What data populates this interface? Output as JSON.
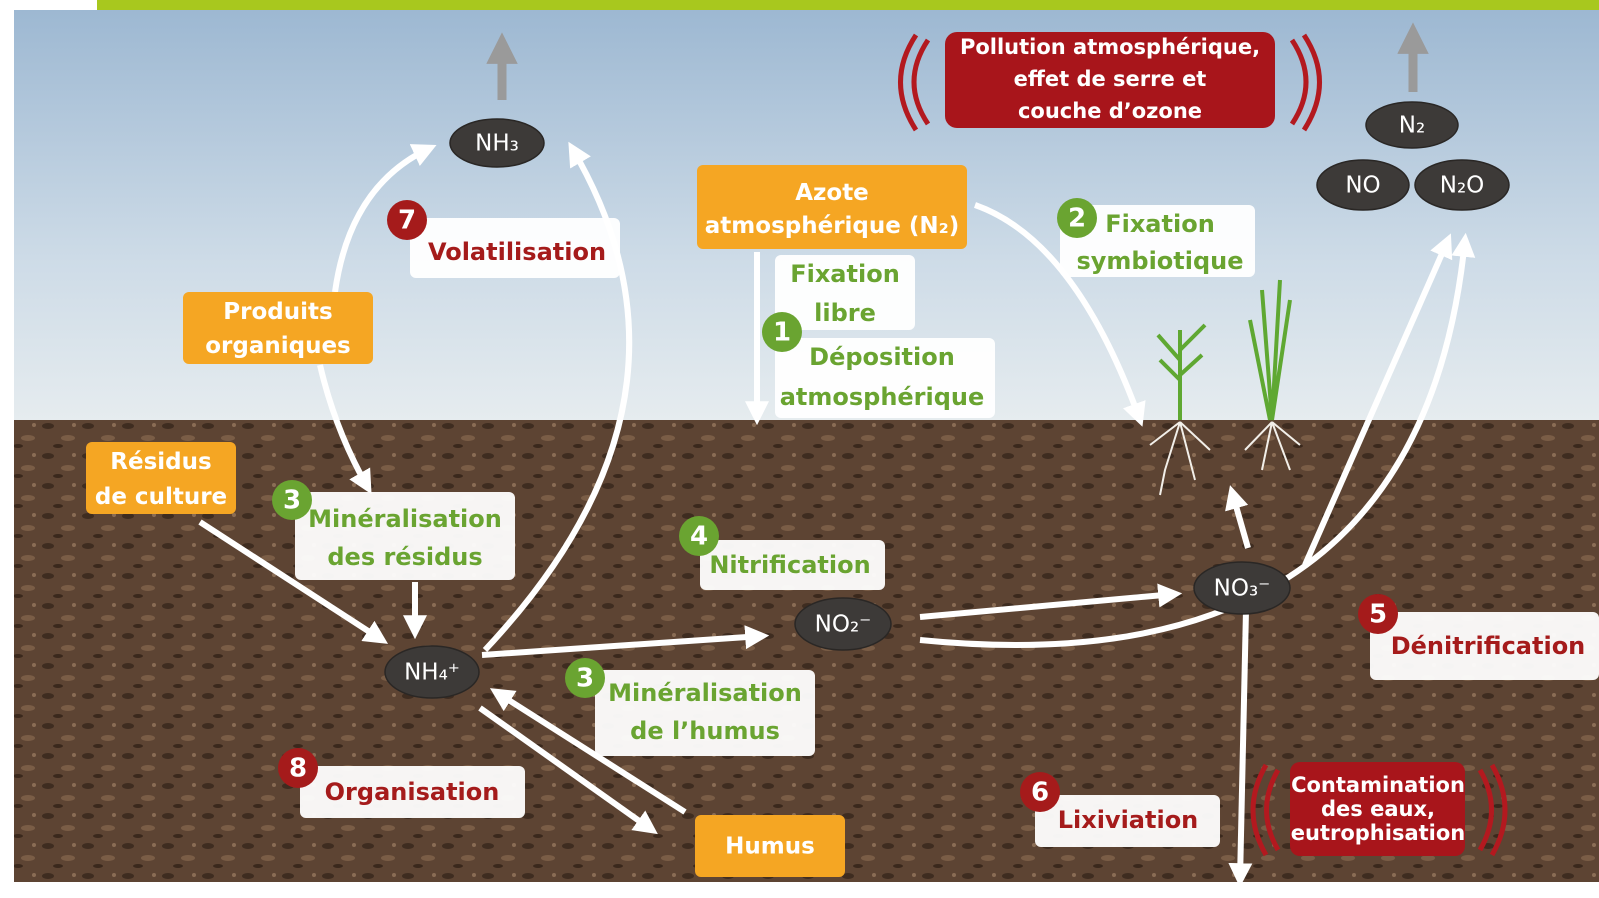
{
  "compounds": [
    "NH₃",
    "N₂",
    "NO",
    "N₂O",
    "NH₄⁺",
    "NO₂⁻",
    "NO₃⁻"
  ],
  "sources": [
    {
      "lines": [
        "Azote",
        "atmosphérique (N₂)"
      ]
    },
    {
      "lines": [
        "Produits",
        "organiques"
      ]
    },
    {
      "lines": [
        "Résidus",
        "de culture"
      ]
    },
    {
      "lines": [
        "Humus"
      ]
    }
  ],
  "processes": [
    {
      "number": 7,
      "lines": [
        "Volatilisation"
      ]
    },
    {
      "number": 1,
      "lines": [
        "Fixation",
        "libre",
        "Déposition",
        "atmosphérique"
      ]
    },
    {
      "number": 2,
      "lines": [
        "Fixation",
        "symbiotique"
      ]
    },
    {
      "number": 3,
      "lines": [
        "Minéralisation",
        "des résidus"
      ]
    },
    {
      "number": 4,
      "lines": [
        "Nitrification"
      ]
    },
    {
      "number": 3,
      "lines": [
        "Minéralisation",
        "de l’humus"
      ]
    },
    {
      "number": 8,
      "lines": [
        "Organisation"
      ]
    },
    {
      "number": 6,
      "lines": [
        "Lixiviation"
      ]
    },
    {
      "number": 5,
      "lines": [
        "Dénitrification"
      ]
    }
  ],
  "impacts": [
    {
      "lines": [
        "Pollution atmosphérique,",
        "effet de serre et",
        "couche d’ozone"
      ]
    },
    {
      "lines": [
        "Contamination",
        "des eaux,",
        "eutrophisation"
      ]
    }
  ]
}
